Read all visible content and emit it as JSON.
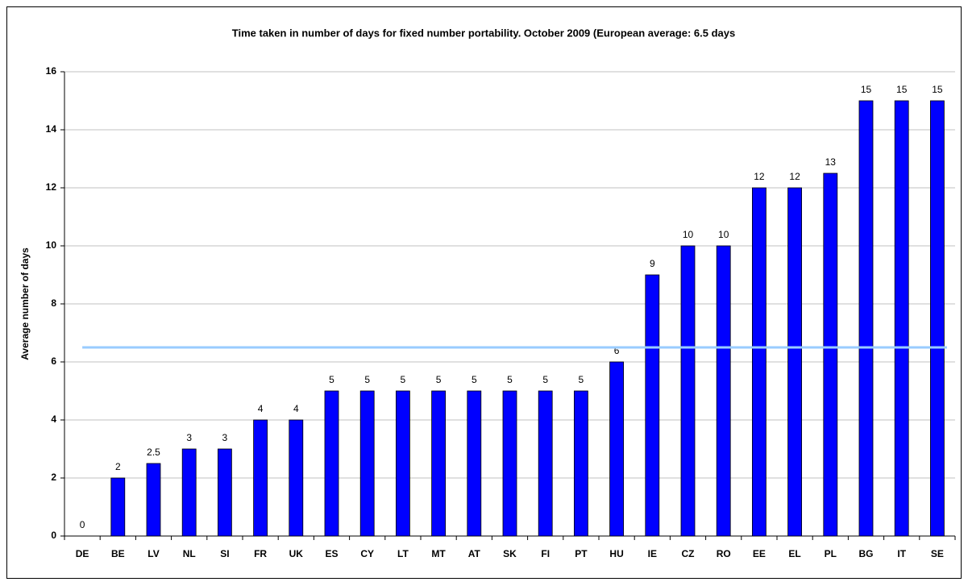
{
  "chart_data": {
    "type": "bar",
    "title": "Time taken in number of days for fixed number portability. October 2009 (European average: 6.5 days",
    "y_label": "Average number of days",
    "categories": [
      "DE",
      "BE",
      "LV",
      "NL",
      "SI",
      "FR",
      "UK",
      "ES",
      "CY",
      "LT",
      "MT",
      "AT",
      "SK",
      "FI",
      "PT",
      "HU",
      "IE",
      "CZ",
      "RO",
      "EE",
      "EL",
      "PL",
      "BG",
      "IT",
      "SE"
    ],
    "values": [
      0,
      2,
      2.5,
      3,
      3,
      4,
      4,
      5,
      5,
      5,
      5,
      5,
      5,
      5,
      5,
      6,
      9,
      10,
      10,
      12,
      12,
      12.5,
      15,
      15,
      15
    ],
    "value_labels": [
      "0",
      "2",
      "2.5",
      "3",
      "3",
      "4",
      "4",
      "5",
      "5",
      "5",
      "5",
      "5",
      "5",
      "5",
      "5",
      "6",
      "9",
      "10",
      "10",
      "12",
      "12",
      "13",
      "15",
      "15",
      "15"
    ],
    "color": "#0000ff",
    "average": 6.5,
    "average_color": "#99ccff",
    "ylim": [
      0,
      16
    ],
    "yticks": [
      0,
      2,
      4,
      6,
      8,
      10,
      12,
      14,
      16
    ],
    "grid": true
  }
}
